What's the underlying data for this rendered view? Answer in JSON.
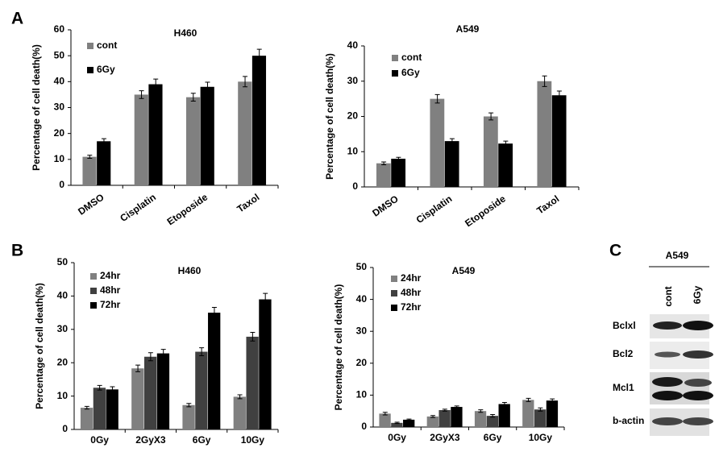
{
  "panel_labels": [
    "A",
    "B",
    "C"
  ],
  "chart_data": [
    {
      "type": "bar",
      "title": "H460",
      "ylabel": "Percentage of cell death(%)",
      "categories": [
        "DMSO",
        "Cisplatin",
        "Etoposide",
        "Taxol"
      ],
      "series": [
        {
          "name": "cont",
          "color": "#808080",
          "values": [
            11,
            35,
            34,
            40
          ],
          "errors": [
            0.6,
            1.5,
            1.5,
            2
          ]
        },
        {
          "name": "6Gy",
          "color": "#000000",
          "values": [
            17,
            39,
            38,
            50
          ],
          "errors": [
            1,
            2,
            1.8,
            2.5
          ]
        }
      ],
      "ylim": [
        0,
        60
      ],
      "yticks": [
        0,
        10,
        20,
        30,
        40,
        50,
        60
      ]
    },
    {
      "type": "bar",
      "title": "A549",
      "ylabel": "Percentage of cell death(%)",
      "categories": [
        "DMSO",
        "Cisplatin",
        "Etoposide",
        "Taxol"
      ],
      "series": [
        {
          "name": "cont",
          "color": "#808080",
          "values": [
            6.7,
            25,
            20,
            30
          ],
          "errors": [
            0.4,
            1.2,
            1,
            1.5
          ]
        },
        {
          "name": "6Gy",
          "color": "#000000",
          "values": [
            8,
            13,
            12.3,
            26
          ],
          "errors": [
            0.4,
            0.7,
            0.7,
            1.2
          ]
        }
      ],
      "ylim": [
        0,
        40
      ],
      "yticks": [
        0,
        10,
        20,
        30,
        40
      ]
    },
    {
      "type": "bar",
      "title": "H460",
      "ylabel": "Percentage of cell death(%)",
      "categories": [
        "0Gy",
        "2GyX3",
        "6Gy",
        "10Gy"
      ],
      "series": [
        {
          "name": "24hr",
          "color": "#808080",
          "values": [
            6.5,
            18.3,
            7.3,
            9.8
          ],
          "errors": [
            0.4,
            1,
            0.5,
            0.6
          ]
        },
        {
          "name": "48hr",
          "color": "#404040",
          "values": [
            12.5,
            21.8,
            23.3,
            27.8
          ],
          "errors": [
            0.7,
            1.2,
            1.2,
            1.3
          ]
        },
        {
          "name": "72hr",
          "color": "#000000",
          "values": [
            12,
            22.8,
            35,
            39
          ],
          "errors": [
            0.8,
            1.2,
            1.6,
            1.8
          ]
        }
      ],
      "ylim": [
        0,
        50
      ],
      "yticks": [
        0,
        10,
        20,
        30,
        40,
        50
      ]
    },
    {
      "type": "bar",
      "title": "A549",
      "ylabel": "Percentage of cell death(%)",
      "categories": [
        "0Gy",
        "2GyX3",
        "6Gy",
        "10Gy"
      ],
      "series": [
        {
          "name": "24hr",
          "color": "#808080",
          "values": [
            4.2,
            3.3,
            5,
            8.5
          ],
          "errors": [
            0.4,
            0.3,
            0.4,
            0.5
          ]
        },
        {
          "name": "48hr",
          "color": "#404040",
          "values": [
            1.3,
            5.3,
            3.5,
            5.5
          ],
          "errors": [
            0.2,
            0.3,
            0.4,
            0.5
          ]
        },
        {
          "name": "72hr",
          "color": "#000000",
          "values": [
            2.3,
            6.3,
            7.2,
            8.3
          ],
          "errors": [
            0.2,
            0.3,
            0.5,
            0.5
          ]
        }
      ],
      "ylim": [
        0,
        50
      ],
      "yticks": [
        0,
        10,
        20,
        30,
        40,
        50
      ]
    }
  ],
  "blot": {
    "cell_line": "A549",
    "lanes": [
      "cont",
      "6Gy"
    ],
    "proteins": [
      "Bclxl",
      "Bcl2",
      "Mcl1",
      "b-actin"
    ]
  }
}
